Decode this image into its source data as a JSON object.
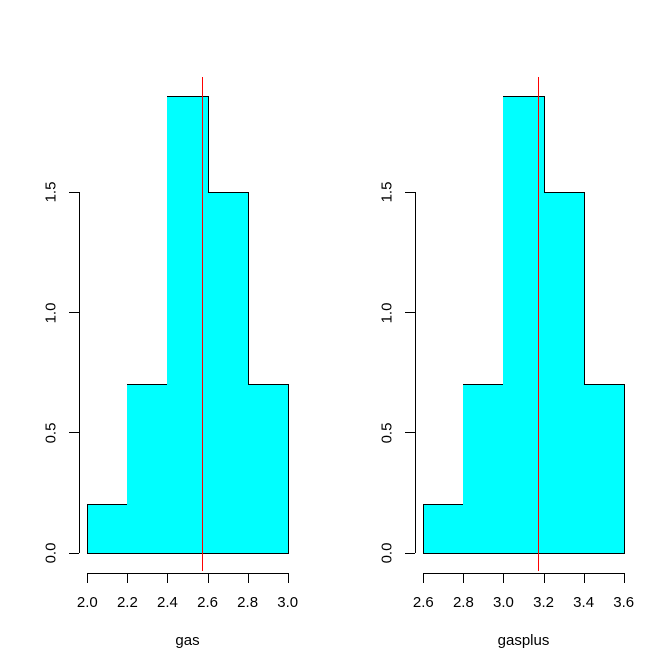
{
  "figure": {
    "background": "#FFFFFF",
    "text_color": "#000000",
    "axis_color": "#000000"
  },
  "chart_data": [
    {
      "type": "bar",
      "subtype": "histogram-density",
      "xlabel": "gas",
      "ylabel": "",
      "title": "",
      "breaks": [
        2.0,
        2.2,
        2.4,
        2.6,
        2.8,
        3.0
      ],
      "densities": [
        0.2,
        0.7,
        1.9,
        1.5,
        0.7
      ],
      "x_tick_labels": [
        "2.0",
        "2.2",
        "2.4",
        "2.6",
        "2.8",
        "3.0"
      ],
      "y_tick_values": [
        0,
        0.5,
        1.0,
        1.5
      ],
      "y_tick_labels": [
        "0.0",
        "0.5",
        "1.0",
        "1.5"
      ],
      "xlim": [
        2.0,
        3.0
      ],
      "ylim": [
        0,
        1.9
      ],
      "grid": false,
      "legend": false,
      "mean_line_x": 2.571,
      "bar_fill": "#00FFFF",
      "bar_border": "#000000",
      "mean_line_color": "#FF0000"
    },
    {
      "type": "bar",
      "subtype": "histogram-density",
      "xlabel": "gasplus",
      "ylabel": "",
      "title": "",
      "breaks": [
        2.6,
        2.8,
        3.0,
        3.2,
        3.4,
        3.6
      ],
      "densities": [
        0.2,
        0.7,
        1.9,
        1.5,
        0.7
      ],
      "x_tick_labels": [
        "2.6",
        "2.8",
        "3.0",
        "3.2",
        "3.4",
        "3.6"
      ],
      "y_tick_values": [
        0,
        0.5,
        1.0,
        1.5
      ],
      "y_tick_labels": [
        "0.0",
        "0.5",
        "1.0",
        "1.5"
      ],
      "xlim": [
        2.6,
        3.6
      ],
      "ylim": [
        0,
        1.9
      ],
      "grid": false,
      "legend": false,
      "mean_line_x": 3.171,
      "bar_fill": "#00FFFF",
      "bar_border": "#000000",
      "mean_line_color": "#FF0000"
    }
  ]
}
